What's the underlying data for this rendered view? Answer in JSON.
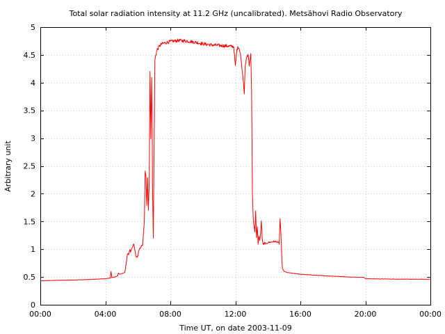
{
  "chart_data": {
    "type": "line",
    "title": "Total solar radiation intensity at 11.2 GHz (uncalibrated). Metsähovi Radio Observatory",
    "xlabel": "Time UT, on date 2003-11-09",
    "ylabel": "Arbitrary unit",
    "xlim": [
      0,
      24
    ],
    "ylim": [
      0,
      5
    ],
    "grid": true,
    "x_ticks": [
      0,
      4,
      8,
      12,
      16,
      20,
      24
    ],
    "x_tick_labels": [
      "00:00",
      "04:00",
      "08:00",
      "12:00",
      "16:00",
      "20:00",
      "00:00"
    ],
    "y_ticks": [
      0,
      0.5,
      1,
      1.5,
      2,
      2.5,
      3,
      3.5,
      4,
      4.5,
      5
    ],
    "y_tick_labels": [
      "0",
      "0.5",
      "1",
      "1.5",
      "2",
      "2.5",
      "3",
      "3.5",
      "4",
      "4.5",
      "5"
    ],
    "series_color": "#ff0000",
    "series": [
      {
        "x": [
          0.0,
          1.0,
          2.0,
          3.0,
          4.0,
          4.3,
          4.35,
          4.4,
          4.6,
          4.75,
          4.8,
          4.9,
          5.0,
          5.2,
          5.35,
          5.45,
          5.5,
          5.55,
          5.7,
          5.75,
          5.8,
          5.9,
          6.0,
          6.05,
          6.1,
          6.2,
          6.3,
          6.35,
          6.4,
          6.45,
          6.5,
          6.55,
          6.6,
          6.65,
          6.7,
          6.75,
          6.8,
          6.85,
          6.88,
          6.9,
          6.95,
          7.0,
          7.05,
          7.1,
          7.15,
          7.2,
          7.25,
          7.3,
          7.4,
          7.5,
          7.7,
          8.0,
          8.5,
          9.0,
          9.5,
          10.0,
          10.5,
          11.0,
          11.5,
          11.9,
          12.0,
          12.05,
          12.1,
          12.2,
          12.3,
          12.5,
          12.55,
          12.6,
          12.7,
          12.8,
          12.85,
          12.9,
          12.95,
          13.0,
          13.05,
          13.1,
          13.2,
          13.25,
          13.3,
          13.35,
          13.4,
          13.45,
          13.5,
          13.55,
          13.6,
          13.65,
          13.7,
          13.75,
          13.8,
          13.85,
          13.9,
          14.0,
          14.2,
          14.4,
          14.6,
          14.7,
          14.75,
          14.8,
          14.85,
          14.9,
          15.0,
          15.2,
          16.0,
          17.0,
          18.0,
          19.0,
          19.9,
          20.0,
          21.0,
          22.0,
          23.0,
          24.0
        ],
        "y": [
          0.43,
          0.44,
          0.445,
          0.455,
          0.47,
          0.48,
          0.6,
          0.49,
          0.5,
          0.52,
          0.57,
          0.55,
          0.56,
          0.58,
          0.9,
          0.92,
          1.0,
          0.95,
          1.05,
          1.1,
          1.0,
          0.85,
          0.88,
          0.95,
          1.0,
          1.05,
          1.08,
          1.3,
          1.5,
          2.4,
          2.3,
          1.8,
          2.3,
          1.7,
          2.2,
          4.2,
          3.0,
          4.1,
          3.3,
          2.2,
          1.2,
          2.8,
          4.4,
          4.5,
          4.55,
          4.6,
          4.62,
          4.65,
          4.68,
          4.7,
          4.72,
          4.74,
          4.76,
          4.75,
          4.73,
          4.7,
          4.68,
          4.67,
          4.66,
          4.65,
          4.3,
          4.45,
          4.6,
          4.65,
          4.55,
          4.0,
          3.8,
          4.3,
          4.45,
          4.5,
          4.3,
          4.4,
          4.5,
          3.8,
          2.0,
          1.55,
          1.3,
          1.7,
          1.2,
          1.4,
          1.1,
          1.25,
          1.15,
          1.3,
          1.5,
          1.2,
          1.1,
          1.08,
          1.12,
          1.1,
          1.1,
          1.12,
          1.13,
          1.14,
          1.13,
          1.1,
          1.55,
          1.3,
          0.9,
          0.65,
          0.6,
          0.58,
          0.55,
          0.53,
          0.515,
          0.5,
          0.495,
          0.47,
          0.465,
          0.462,
          0.46,
          0.46
        ]
      }
    ]
  }
}
